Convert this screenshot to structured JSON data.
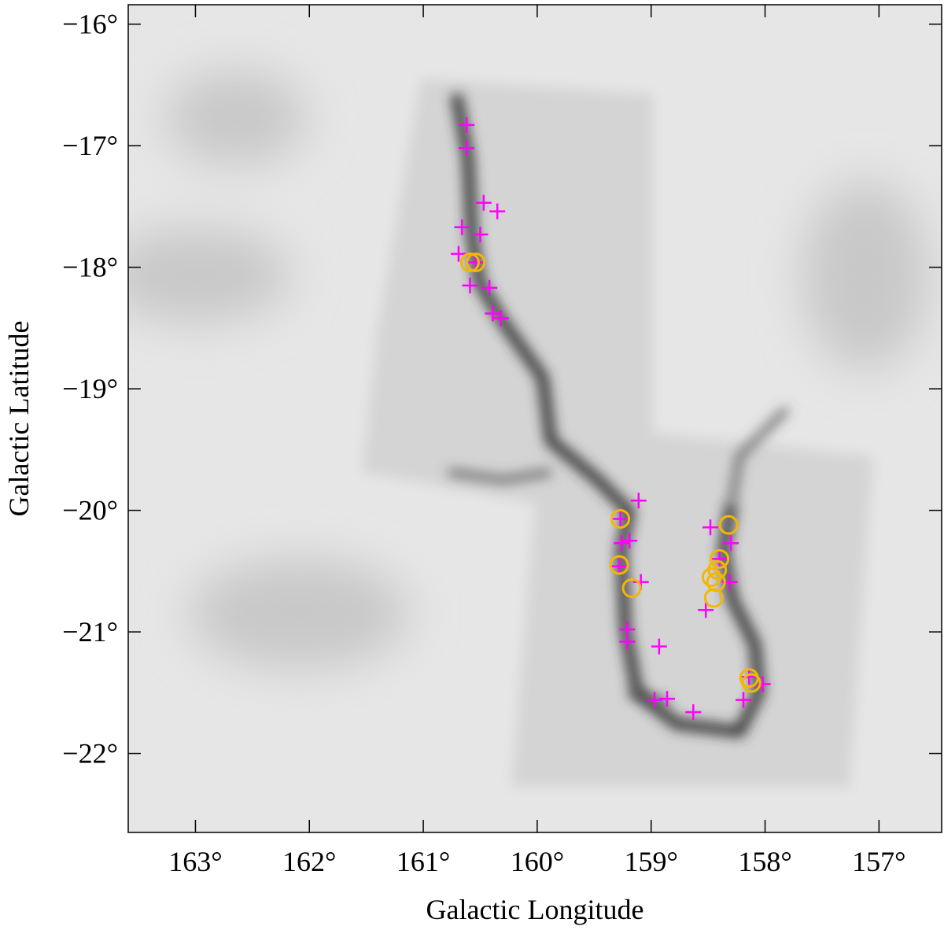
{
  "chart_data": {
    "type": "scatter",
    "xlabel": "Galactic Longitude",
    "ylabel": "Galactic Latitude",
    "xlim": [
      163.59,
      156.45
    ],
    "ylim": [
      -22.65,
      -15.84
    ],
    "xticks": [
      {
        "value": 163,
        "label": "163°"
      },
      {
        "value": 162,
        "label": "162°"
      },
      {
        "value": 161,
        "label": "161°"
      },
      {
        "value": 160,
        "label": "160°"
      },
      {
        "value": 159,
        "label": "159°"
      },
      {
        "value": 158,
        "label": "158°"
      },
      {
        "value": 157,
        "label": "157°"
      }
    ],
    "yticks": [
      {
        "value": -16,
        "label": "−16°"
      },
      {
        "value": -17,
        "label": "−17°"
      },
      {
        "value": -18,
        "label": "−18°"
      },
      {
        "value": -19,
        "label": "−19°"
      },
      {
        "value": -20,
        "label": "−20°"
      },
      {
        "value": -21,
        "label": "−21°"
      },
      {
        "value": -22,
        "label": "−22°"
      }
    ],
    "series": [
      {
        "marker": "cross",
        "color": "#ff00ff",
        "x": [
          160.62,
          160.62,
          160.47,
          160.35,
          160.66,
          160.5,
          160.69,
          160.59,
          160.42,
          160.39,
          160.32,
          159.11,
          159.26,
          159.19,
          159.28,
          159.09,
          159.21,
          159.21,
          158.93,
          158.97,
          158.86,
          158.63,
          158.48,
          158.3,
          158.31,
          158.52,
          158.19,
          158.02,
          160.54,
          159.27,
          158.4,
          158.14
        ],
        "y": [
          -16.83,
          -17.02,
          -17.47,
          -17.54,
          -17.67,
          -17.73,
          -17.89,
          -18.15,
          -18.17,
          -18.38,
          -18.42,
          -19.92,
          -20.27,
          -20.25,
          -20.46,
          -20.59,
          -20.98,
          -21.08,
          -21.12,
          -21.56,
          -21.55,
          -21.66,
          -20.14,
          -20.27,
          -20.59,
          -20.82,
          -21.56,
          -21.43,
          -17.96,
          -20.07,
          -20.4,
          -21.37
        ]
      },
      {
        "marker": "circle",
        "color": "#f2b705",
        "x": [
          160.54,
          160.59,
          159.27,
          159.28,
          159.17,
          158.32,
          158.4,
          158.42,
          158.47,
          158.43,
          158.45,
          158.14,
          158.12
        ],
        "y": [
          -17.96,
          -17.96,
          -20.07,
          -20.45,
          -20.64,
          -20.12,
          -20.4,
          -20.49,
          -20.55,
          -20.59,
          -20.72,
          -21.38,
          -21.42
        ]
      }
    ]
  }
}
